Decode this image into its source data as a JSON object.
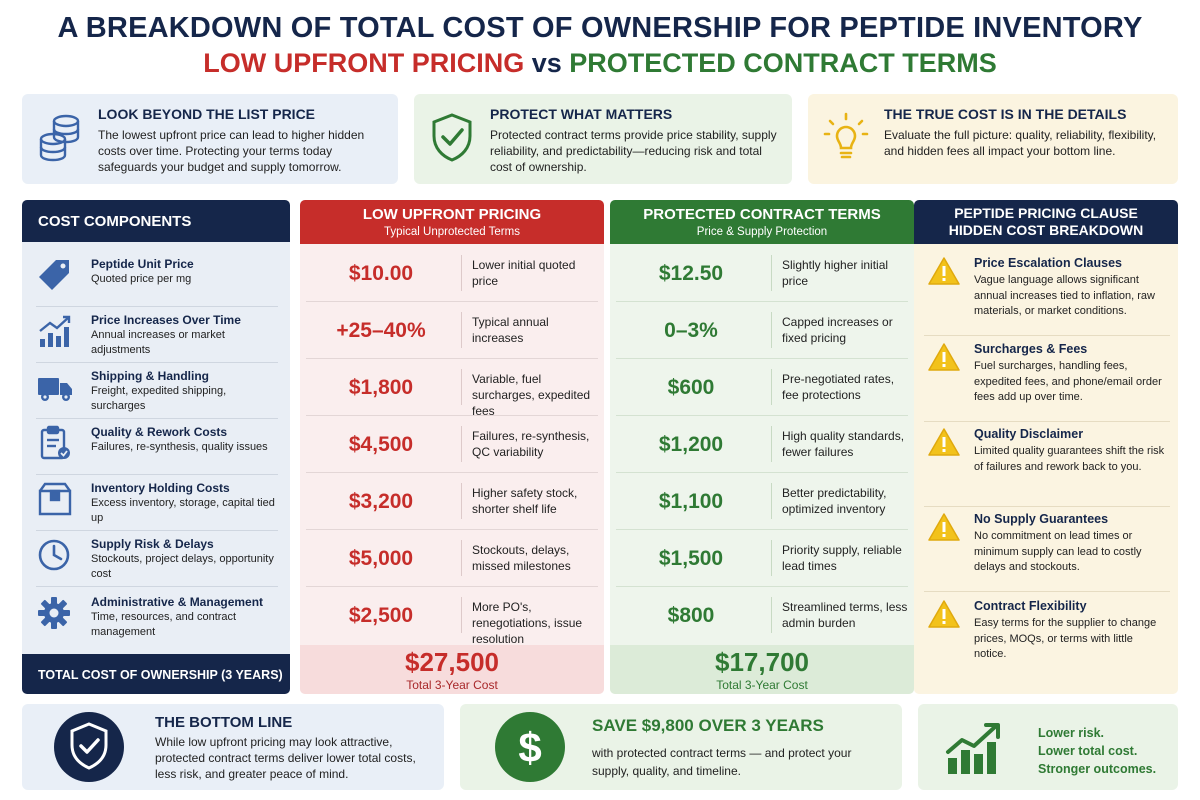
{
  "title": {
    "line1": "A BREAKDOWN OF TOTAL COST OF OWNERSHIP FOR PEPTIDE INVENTORY",
    "left": "LOW UPFRONT PRICING",
    "vs": "vs",
    "right": "PROTECTED CONTRACT TERMS"
  },
  "intro": [
    {
      "icon": "coins-icon",
      "heading": "LOOK BEYOND THE LIST PRICE",
      "text": "The lowest upfront price can lead to higher hidden costs over time. Protecting your terms today safeguards your budget and supply tomorrow."
    },
    {
      "icon": "shield-check-icon",
      "heading": "PROTECT WHAT MATTERS",
      "text": "Protected contract terms provide price stability, supply reliability, and predictability—reducing risk and total cost of ownership."
    },
    {
      "icon": "lightbulb-icon",
      "heading": "THE TRUE COST IS IN THE DETAILS",
      "text": "Evaluate the full picture: quality, reliability, flexibility, and hidden fees all impact your bottom line."
    }
  ],
  "components": {
    "heading": "COST COMPONENTS",
    "items": [
      {
        "icon": "price-tag-icon",
        "name": "Peptide Unit Price",
        "desc": "Quoted price per mg"
      },
      {
        "icon": "rising-chart-icon",
        "name": "Price Increases Over Time",
        "desc": "Annual increases or market adjustments"
      },
      {
        "icon": "truck-icon",
        "name": "Shipping & Handling",
        "desc": "Freight, expedited shipping, surcharges"
      },
      {
        "icon": "clipboard-icon",
        "name": "Quality & Rework Costs",
        "desc": "Failures, re-synthesis, quality issues"
      },
      {
        "icon": "box-icon",
        "name": "Inventory Holding Costs",
        "desc": "Excess inventory, storage, capital tied up"
      },
      {
        "icon": "clock-icon",
        "name": "Supply Risk & Delays",
        "desc": "Stockouts, project delays, opportunity cost"
      },
      {
        "icon": "gear-icon",
        "name": "Administrative & Management",
        "desc": "Time, resources, and contract management"
      }
    ],
    "total_label": "TOTAL COST OF OWNERSHIP (3 YEARS)"
  },
  "low": {
    "heading": "LOW UPFRONT PRICING",
    "sub": "Typical Unprotected Terms",
    "rows": [
      {
        "value": "$10.00",
        "text": "Lower initial quoted price"
      },
      {
        "value": "+25–40%",
        "text": "Typical annual increases"
      },
      {
        "value": "$1,800",
        "text": "Variable, fuel surcharges, expedited fees"
      },
      {
        "value": "$4,500",
        "text": "Failures, re-synthesis, QC variability"
      },
      {
        "value": "$3,200",
        "text": "Higher safety stock, shorter shelf life"
      },
      {
        "value": "$5,000",
        "text": "Stockouts, delays, missed milestones"
      },
      {
        "value": "$2,500",
        "text": "More PO's, renegotiations, issue resolution"
      }
    ],
    "total": "$27,500",
    "total_label": "Total 3-Year Cost"
  },
  "protected": {
    "heading": "PROTECTED CONTRACT TERMS",
    "sub": "Price & Supply Protection",
    "rows": [
      {
        "value": "$12.50",
        "text": "Slightly higher initial price"
      },
      {
        "value": "0–3%",
        "text": "Capped increases or fixed pricing"
      },
      {
        "value": "$600",
        "text": "Pre-negotiated rates, fee protections"
      },
      {
        "value": "$1,200",
        "text": "High quality standards, fewer failures"
      },
      {
        "value": "$1,100",
        "text": "Better predictability, optimized inventory"
      },
      {
        "value": "$1,500",
        "text": "Priority supply, reliable lead times"
      },
      {
        "value": "$800",
        "text": "Streamlined terms, less admin burden"
      }
    ],
    "total": "$17,700",
    "total_label": "Total 3-Year Cost"
  },
  "hidden": {
    "heading_line1": "PEPTIDE PRICING CLAUSE",
    "heading_line2": "HIDDEN COST BREAKDOWN",
    "items": [
      {
        "icon": "warning-icon",
        "name": "Price Escalation Clauses",
        "desc": "Vague language allows significant annual increases tied to inflation, raw materials, or market conditions."
      },
      {
        "icon": "warning-icon",
        "name": "Surcharges & Fees",
        "desc": "Fuel surcharges, handling fees, expedited fees, and phone/email order fees add up over time."
      },
      {
        "icon": "warning-icon",
        "name": "Quality Disclaimer",
        "desc": "Limited quality guarantees shift the risk of failures and rework back to you."
      },
      {
        "icon": "warning-icon",
        "name": "No Supply Guarantees",
        "desc": "No commitment on lead times or minimum supply can lead to costly delays and stockouts."
      },
      {
        "icon": "warning-icon",
        "name": "Contract Flexibility",
        "desc": "Easy terms for the supplier to change prices, MOQs, or terms with little notice."
      }
    ]
  },
  "bottom": {
    "line": {
      "icon": "shield-check-icon",
      "heading": "THE BOTTOM LINE",
      "text": "While low upfront pricing may look attractive, protected contract terms deliver lower total costs, less risk, and greater peace of mind."
    },
    "save": {
      "icon": "dollar-icon",
      "heading": "SAVE $9,800 OVER 3 YEARS",
      "text": "with protected contract terms — and protect your supply, quality, and timeline."
    },
    "outcomes": {
      "icon": "growth-chart-icon",
      "lines": [
        "Lower risk.",
        "Lower total cost.",
        "Stronger outcomes."
      ]
    }
  },
  "colors": {
    "navy": "#15264a",
    "red": "#c62d2a",
    "green": "#2f7a34",
    "amber": "#f2c21b"
  }
}
